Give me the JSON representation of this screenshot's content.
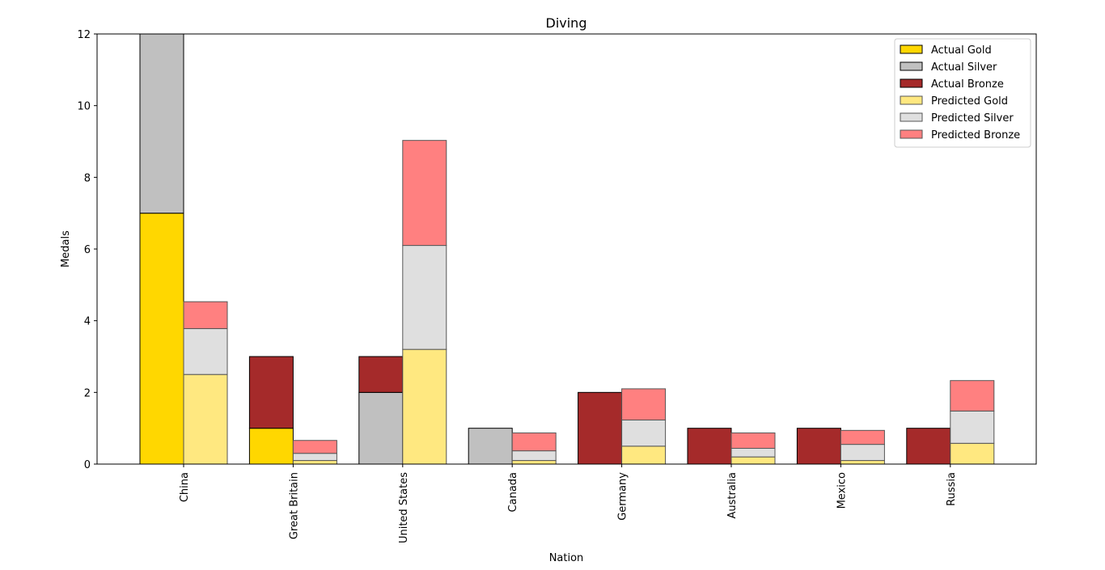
{
  "chart_data": {
    "type": "bar",
    "title": "Diving",
    "xlabel": "Nation",
    "ylabel": "Medals",
    "ylim": [
      0,
      12
    ],
    "yticks": [
      "0",
      "2",
      "4",
      "6",
      "8",
      "10",
      "12"
    ],
    "categories": [
      "China",
      "Great Britain",
      "United States",
      "Canada",
      "Germany",
      "Australia",
      "Mexico",
      "Russia"
    ],
    "stacked": true,
    "grid": false,
    "legend_position": "top-right",
    "groups": [
      {
        "group": "Actual",
        "series": [
          {
            "name": "Actual Gold",
            "color": "#FFD700",
            "values": [
              7,
              1,
              0,
              0,
              0,
              0,
              0,
              0
            ]
          },
          {
            "name": "Actual Silver",
            "color": "#C0C0C0",
            "values": [
              5,
              0,
              2,
              1,
              0,
              0,
              0,
              0
            ]
          },
          {
            "name": "Actual Bronze",
            "color": "#A52A2A",
            "values": [
              0,
              2,
              1,
              0,
              2,
              1,
              1,
              1
            ]
          }
        ]
      },
      {
        "group": "Predicted",
        "series": [
          {
            "name": "Predicted Gold",
            "color": "#FFE880",
            "values": [
              2.5,
              0.1,
              3.2,
              0.1,
              0.5,
              0.2,
              0.1,
              0.58
            ]
          },
          {
            "name": "Predicted Silver",
            "color": "#DFDFDF",
            "values": [
              1.28,
              0.2,
              2.9,
              0.27,
              0.73,
              0.24,
              0.45,
              0.9
            ]
          },
          {
            "name": "Predicted Bronze",
            "color": "#FF8080",
            "values": [
              0.75,
              0.36,
              2.93,
              0.5,
              0.87,
              0.43,
              0.39,
              0.85
            ]
          }
        ]
      }
    ]
  }
}
